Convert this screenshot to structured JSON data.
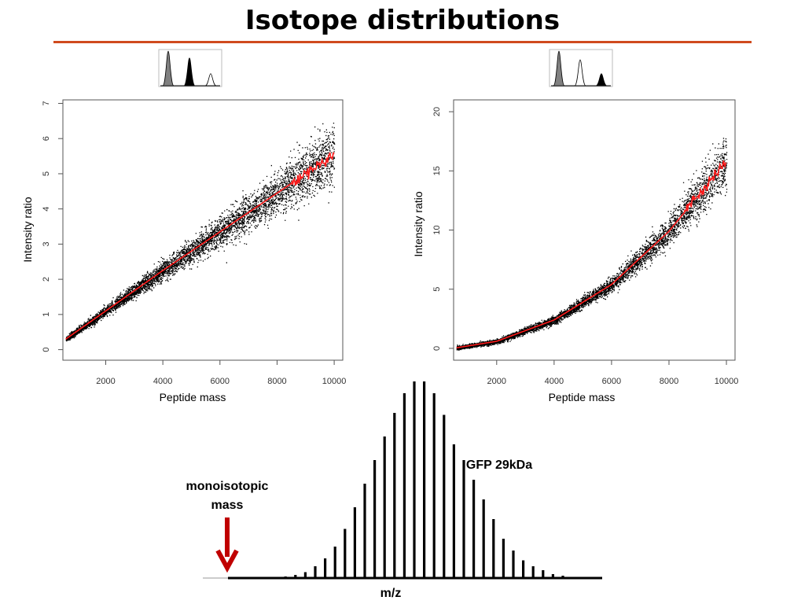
{
  "title": "Isotope distributions",
  "colors": {
    "rule": "#d04a1e",
    "fit": "#ff1a1a",
    "points": "#000000",
    "arrow": "#c00000"
  },
  "chart_data": [
    {
      "type": "scatter",
      "xlabel": "Peptide mass",
      "ylabel": "Intensity ratio",
      "xlim": [
        500,
        10300
      ],
      "ylim": [
        -0.3,
        7.1
      ],
      "xticks": [
        2000,
        4000,
        6000,
        8000,
        10000
      ],
      "yticks": [
        0,
        1,
        2,
        3,
        4,
        5,
        6,
        7
      ],
      "fit": {
        "x": [
          600,
          2000,
          4000,
          6000,
          8000,
          10000
        ],
        "y": [
          0.3,
          1.1,
          2.25,
          3.35,
          4.45,
          5.55
        ]
      },
      "inset_peaks": [
        {
          "rel_height": 1.0,
          "fill": "#808080"
        },
        {
          "rel_height": 0.8,
          "fill": "#000000"
        },
        {
          "rel_height": 0.35,
          "fill": "none"
        }
      ]
    },
    {
      "type": "scatter",
      "xlabel": "Peptide mass",
      "ylabel": "Intensity ratio",
      "xlim": [
        500,
        10300
      ],
      "ylim": [
        -1,
        21
      ],
      "xticks": [
        2000,
        4000,
        6000,
        8000,
        10000
      ],
      "yticks": [
        0,
        5,
        10,
        15,
        20
      ],
      "fit": {
        "x": [
          600,
          2000,
          4000,
          6000,
          8000,
          10000
        ],
        "y": [
          0.05,
          0.6,
          2.4,
          5.4,
          9.9,
          15.8
        ]
      },
      "inset_peaks": [
        {
          "rel_height": 1.0,
          "fill": "#808080"
        },
        {
          "rel_height": 0.75,
          "fill": "none"
        },
        {
          "rel_height": 0.35,
          "fill": "#000000"
        }
      ]
    },
    {
      "type": "bar",
      "xlabel": "m/z",
      "series_label": "GFP 29kDa",
      "annotation": "monoisotopic mass",
      "annotation_lines": [
        "monoisotopic",
        "mass"
      ],
      "values": [
        0.002,
        0.004,
        0.008,
        0.016,
        0.03,
        0.06,
        0.1,
        0.16,
        0.25,
        0.36,
        0.48,
        0.6,
        0.72,
        0.84,
        0.94,
        1.0,
        1.0,
        0.94,
        0.83,
        0.68,
        0.6,
        0.5,
        0.4,
        0.3,
        0.2,
        0.14,
        0.09,
        0.06,
        0.04,
        0.02,
        0.012,
        0.006,
        0.003
      ]
    }
  ]
}
